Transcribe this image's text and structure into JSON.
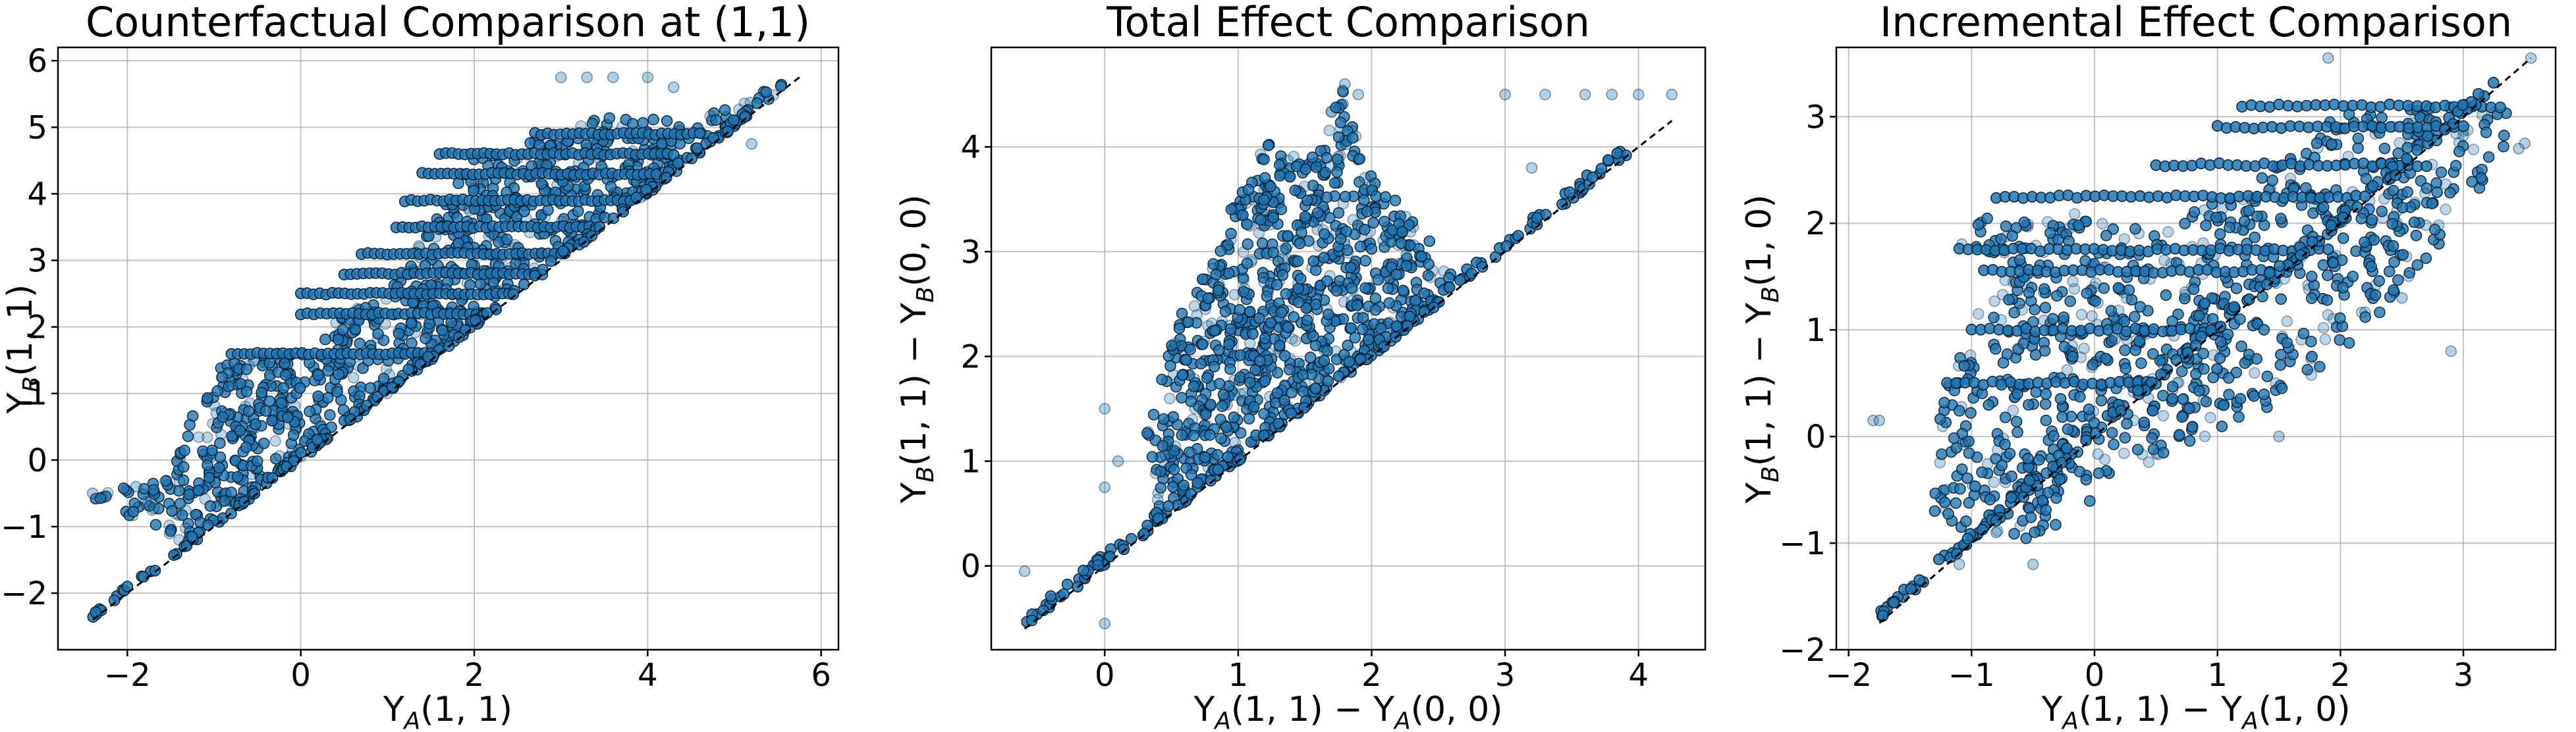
{
  "colors": {
    "point_fill": "#1f77b4",
    "point_edge": "#0b1f33",
    "background": "#ffffff",
    "grid": "#b0b0b0",
    "reference_line": "#000000"
  },
  "chart_data": [
    {
      "type": "scatter",
      "title": "Counterfactual Comparison at (1,1)",
      "xlabel": "Y_A(1,1)",
      "ylabel": "Y_B(1,1)",
      "xlim": [
        -2.8,
        6.2
      ],
      "ylim": [
        -2.85,
        6.2
      ],
      "xticks": [
        -2,
        0,
        2,
        4,
        6
      ],
      "yticks": [
        -2,
        -1,
        0,
        1,
        2,
        3,
        4,
        5,
        6
      ],
      "grid": true,
      "reference_line": {
        "style": "dashed",
        "from": [
          -2.4,
          -2.4
        ],
        "to": [
          5.75,
          5.75
        ]
      },
      "point_style": {
        "marker": "circle",
        "color": "#1f77b4",
        "edgecolor": "#0b1f33"
      },
      "series": [
        {
          "region_polygon": [
            [
              -2.4,
              -0.5
            ],
            [
              -2.4,
              -0.6
            ],
            [
              -1.3,
              -1.3
            ],
            [
              -0.9,
              -0.7
            ],
            [
              0,
              0
            ],
            [
              1,
              1
            ],
            [
              2,
              2
            ],
            [
              3,
              3
            ],
            [
              4,
              4
            ],
            [
              5,
              5
            ],
            [
              5.75,
              5.75
            ],
            [
              4.5,
              5.1
            ],
            [
              3.5,
              5.2
            ],
            [
              3,
              4.9
            ],
            [
              2,
              4.6
            ],
            [
              1.5,
              3.5
            ],
            [
              1,
              2.5
            ],
            [
              0.5,
              2.2
            ],
            [
              0,
              1.6
            ],
            [
              -0.5,
              1.6
            ],
            [
              -1,
              1.4
            ],
            [
              -1.3,
              0.5
            ],
            [
              -1.5,
              -0.3
            ]
          ],
          "horizontal_bands": [
            {
              "y": 4.6,
              "x_start": 1.6,
              "x_end": 4.3
            },
            {
              "y": 4.9,
              "x_start": 2.7,
              "x_end": 4.6
            },
            {
              "y": 4.3,
              "x_start": 1.4,
              "x_end": 4.1
            },
            {
              "y": 3.9,
              "x_start": 1.2,
              "x_end": 3.8
            },
            {
              "y": 3.5,
              "x_start": 1.1,
              "x_end": 3.4
            },
            {
              "y": 3.1,
              "x_start": 0.7,
              "x_end": 3.0
            },
            {
              "y": 2.8,
              "x_start": 0.5,
              "x_end": 2.7
            },
            {
              "y": 2.5,
              "x_start": 0.0,
              "x_end": 2.4
            },
            {
              "y": 2.2,
              "x_start": 0.0,
              "x_end": 2.1
            },
            {
              "y": 1.6,
              "x_start": -0.8,
              "x_end": 1.5
            }
          ],
          "sparse_points": [
            {
              "x": 3.0,
              "y": 5.75
            },
            {
              "x": 3.3,
              "y": 5.75
            },
            {
              "x": 3.6,
              "y": 5.75
            },
            {
              "x": 4.0,
              "y": 5.75
            },
            {
              "x": 4.3,
              "y": 5.6
            },
            {
              "x": 5.2,
              "y": 4.75
            },
            {
              "x": -2.4,
              "y": -0.5
            },
            {
              "x": -1.9,
              "y": -0.4
            }
          ]
        }
      ]
    },
    {
      "type": "scatter",
      "title": "Total Effect Comparison",
      "xlabel": "Y_A(1,1) − Y_A(0,0)",
      "ylabel": "Y_B(1,1) − Y_B(0,0)",
      "xlim": [
        -0.85,
        4.5
      ],
      "ylim": [
        -0.8,
        4.95
      ],
      "xticks": [
        0,
        1,
        2,
        3,
        4
      ],
      "yticks": [
        0,
        1,
        2,
        3,
        4
      ],
      "grid": true,
      "reference_line": {
        "style": "dashed",
        "from": [
          -0.6,
          -0.6
        ],
        "to": [
          4.25,
          4.25
        ]
      },
      "point_style": {
        "marker": "circle",
        "color": "#1f77b4",
        "edgecolor": "#0b1f33"
      },
      "series": [
        {
          "region_polygon": [
            [
              0.4,
              0.4
            ],
            [
              1,
              1
            ],
            [
              1.5,
              1.5
            ],
            [
              2,
              2
            ],
            [
              2.6,
              2.6
            ],
            [
              2.6,
              2.9
            ],
            [
              2.3,
              3.3
            ],
            [
              2.0,
              3.8
            ],
            [
              1.8,
              4.6
            ],
            [
              1.5,
              3.9
            ],
            [
              1.2,
              4.05
            ],
            [
              1.0,
              3.6
            ],
            [
              0.8,
              2.9
            ],
            [
              0.6,
              2.5
            ],
            [
              0.4,
              1.7
            ],
            [
              0.3,
              1.2
            ]
          ],
          "horizontal_bands": [],
          "sparse_points": [
            {
              "x": 1.8,
              "y": 4.6
            },
            {
              "x": 1.9,
              "y": 4.5
            },
            {
              "x": 3.0,
              "y": 4.5
            },
            {
              "x": 3.3,
              "y": 4.5
            },
            {
              "x": 3.6,
              "y": 4.5
            },
            {
              "x": 3.8,
              "y": 4.5
            },
            {
              "x": 4.0,
              "y": 4.5
            },
            {
              "x": 4.25,
              "y": 4.5
            },
            {
              "x": 3.2,
              "y": 3.8
            },
            {
              "x": -0.6,
              "y": -0.05
            },
            {
              "x": 0.0,
              "y": -0.55
            },
            {
              "x": 0.0,
              "y": 1.5
            },
            {
              "x": -0.05,
              "y": 0.05
            },
            {
              "x": 0.0,
              "y": 0.75
            },
            {
              "x": 0.1,
              "y": 1.0
            }
          ]
        }
      ]
    },
    {
      "type": "scatter",
      "title": "Incremental Effect Comparison",
      "xlabel": "Y_A(1,1) − Y_A(1,0)",
      "ylabel": "Y_B(1,1) − Y_B(1,0)",
      "xlim": [
        -2.1,
        3.75
      ],
      "ylim": [
        -2.0,
        3.65
      ],
      "xticks": [
        -2,
        -1,
        0,
        1,
        2,
        3
      ],
      "yticks": [
        -2,
        -1,
        0,
        1,
        2,
        3
      ],
      "grid": true,
      "reference_line": {
        "style": "dashed",
        "from": [
          -1.75,
          -1.75
        ],
        "to": [
          3.55,
          3.55
        ]
      },
      "point_style": {
        "marker": "circle",
        "color": "#1f77b4",
        "edgecolor": "#0b1f33"
      },
      "series": [
        {
          "region_polygon": [
            [
              -1.3,
              -0.8
            ],
            [
              -0.5,
              -1.0
            ],
            [
              0.5,
              -0.2
            ],
            [
              1.5,
              0.3
            ],
            [
              2.2,
              1.0
            ],
            [
              2.8,
              1.8
            ],
            [
              3.3,
              2.5
            ],
            [
              3.4,
              3.1
            ],
            [
              2.8,
              3.1
            ],
            [
              2.0,
              3.1
            ],
            [
              1.5,
              2.6
            ],
            [
              1.0,
              2.2
            ],
            [
              0.5,
              2.0
            ],
            [
              -0.8,
              2.2
            ],
            [
              -1.1,
              1.8
            ],
            [
              -0.9,
              1.4
            ],
            [
              -1.2,
              0.5
            ],
            [
              -1.3,
              0.0
            ]
          ],
          "horizontal_bands": [
            {
              "y": 3.1,
              "x_start": 1.2,
              "x_end": 3.3
            },
            {
              "y": 2.9,
              "x_start": 1.0,
              "x_end": 3.0
            },
            {
              "y": 2.55,
              "x_start": 0.5,
              "x_end": 2.7
            },
            {
              "y": 2.25,
              "x_start": -0.8,
              "x_end": 2.2
            },
            {
              "y": 1.75,
              "x_start": -1.1,
              "x_end": 1.9
            },
            {
              "y": 1.55,
              "x_start": -0.9,
              "x_end": 1.5
            },
            {
              "y": 1.0,
              "x_start": -1.0,
              "x_end": 1.0
            },
            {
              "y": 0.5,
              "x_start": -1.2,
              "x_end": 0.5
            }
          ],
          "sparse_points": [
            {
              "x": -1.8,
              "y": 0.15
            },
            {
              "x": -1.75,
              "y": 0.15
            },
            {
              "x": 3.55,
              "y": 3.55
            },
            {
              "x": 3.5,
              "y": 2.75
            },
            {
              "x": 3.45,
              "y": 2.7
            },
            {
              "x": 1.9,
              "y": 3.55
            },
            {
              "x": 1.5,
              "y": 0.0
            },
            {
              "x": 2.9,
              "y": 0.8
            },
            {
              "x": 2.5,
              "y": 1.3
            },
            {
              "x": -0.8,
              "y": -0.9
            },
            {
              "x": -0.5,
              "y": -1.2
            },
            {
              "x": -1.1,
              "y": -1.2
            }
          ]
        }
      ]
    }
  ]
}
